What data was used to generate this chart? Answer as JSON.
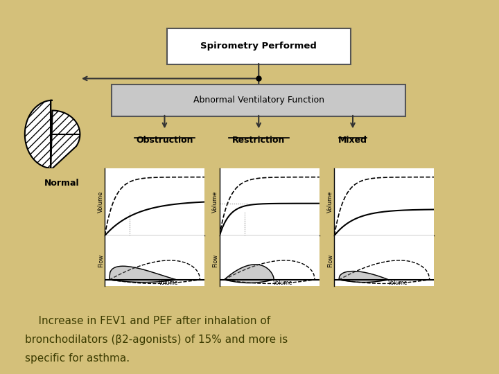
{
  "background_color": "#D4C07A",
  "panel_bg": "#FFFFFF",
  "title_text": "Spirometry Performed",
  "abnormal_text": "Abnormal Ventilatory Function",
  "categories": [
    "Obstruction",
    "Restriction",
    "Mixed"
  ],
  "normal_label": "Normal",
  "caption_line1": "    Increase in FEV1 and PEF after inhalation of",
  "caption_line2": "bronchodilators (β2-agonists) of 15% and more is",
  "caption_line3": "specific for asthma.",
  "caption_color": "#3B3B00",
  "box_fill": "#C8C8C8",
  "box_edge": "#555555",
  "arrow_color": "#333333",
  "label_color": "#000000"
}
